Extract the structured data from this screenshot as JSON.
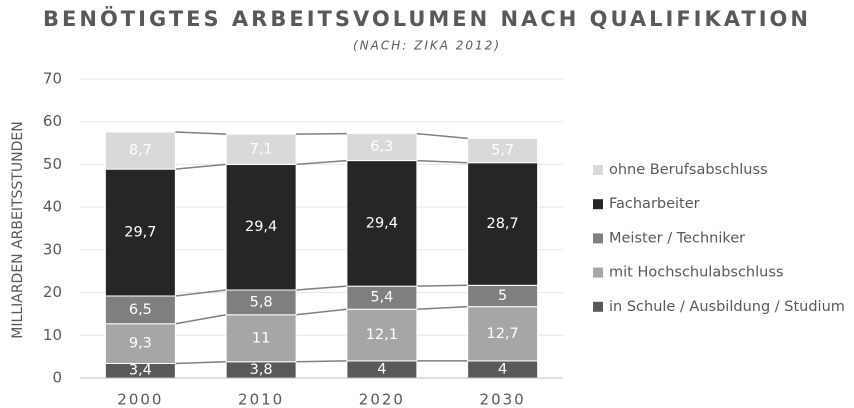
{
  "chart_data": {
    "type": "stacked_bar",
    "title": "BENÖTIGTES ARBEITSVOLUMEN NACH QUALIFIKATION",
    "subtitle": "(NACH: ZIKA 2012)",
    "y_label": "MILLIARDEN ARBEITSSTUNDEN",
    "categories": [
      "2000",
      "2010",
      "2020",
      "2030"
    ],
    "series": [
      {
        "name": "in Schule / Ausbildung / Studium",
        "color": "#595959",
        "values": [
          3.4,
          3.8,
          4,
          4
        ],
        "value_labels": [
          "3,4",
          "3,8",
          "4",
          "4"
        ]
      },
      {
        "name": "mit Hochschulabschluss",
        "color": "#a6a6a6",
        "values": [
          9.3,
          11,
          12.1,
          12.7
        ],
        "value_labels": [
          "9,3",
          "11",
          "12,1",
          "12,7"
        ]
      },
      {
        "name": "Meister / Techniker",
        "color": "#7f7f7f",
        "values": [
          6.5,
          5.8,
          5.4,
          5
        ],
        "value_labels": [
          "6,5",
          "5,8",
          "5,4",
          "5"
        ]
      },
      {
        "name": "Facharbeiter",
        "color": "#262626",
        "values": [
          29.7,
          29.4,
          29.4,
          28.7
        ],
        "value_labels": [
          "29,7",
          "29,4",
          "29,4",
          "28,7"
        ]
      },
      {
        "name": "ohne Berufsabschluss",
        "color": "#d9d9d9",
        "values": [
          8.7,
          7.1,
          6.3,
          5.7
        ],
        "value_labels": [
          "8,7",
          "7,1",
          "6,3",
          "5,7"
        ]
      }
    ],
    "ylim": [
      0,
      70
    ],
    "yticks": [
      0,
      10,
      20,
      30,
      40,
      50,
      60,
      70
    ],
    "grid": true,
    "legend": "right"
  }
}
